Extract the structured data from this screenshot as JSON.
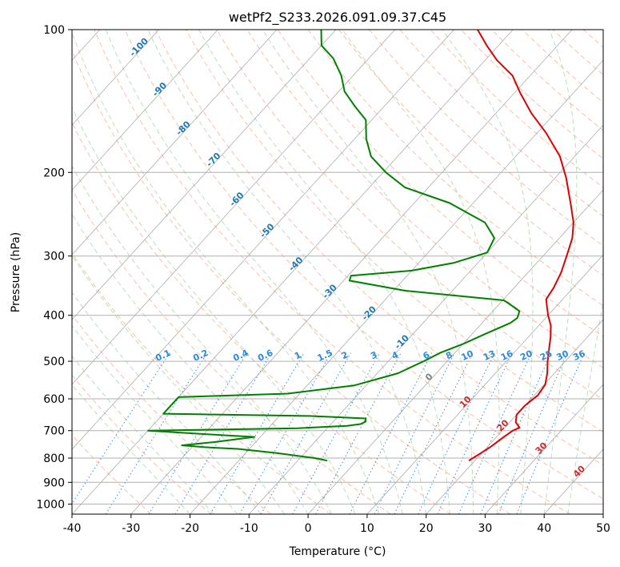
{
  "chart_data": {
    "type": "skew-t",
    "title": "wetPf2_S233.2026.091.09.37.C45",
    "xlabel": "Temperature (°C)",
    "ylabel": "Pressure (hPa)",
    "xlim": [
      -40,
      50
    ],
    "ylim": [
      1050,
      100
    ],
    "y_scale": "log",
    "grid": true,
    "x_ticks": [
      "-40",
      "-30",
      "-20",
      "-10",
      "0",
      "10",
      "20",
      "30",
      "40",
      "50"
    ],
    "y_ticks": [
      "100",
      "200",
      "300",
      "400",
      "500",
      "600",
      "700",
      "800",
      "900",
      "1000"
    ],
    "temperature_profile": {
      "color": "#e00000",
      "points": [
        [
          19,
          810
        ],
        [
          20.5,
          760
        ],
        [
          21.3,
          720
        ],
        [
          21.8,
          700
        ],
        [
          22.5,
          690
        ],
        [
          21,
          672
        ],
        [
          20,
          648
        ],
        [
          20,
          620
        ],
        [
          20.6,
          590
        ],
        [
          20.2,
          560
        ],
        [
          18.8,
          530
        ],
        [
          17,
          500
        ],
        [
          15.3,
          470
        ],
        [
          13.8,
          445
        ],
        [
          12,
          420
        ],
        [
          10,
          400
        ],
        [
          8.6,
          385
        ],
        [
          7.2,
          370
        ],
        [
          6.7,
          350
        ],
        [
          5.6,
          325
        ],
        [
          4,
          300
        ],
        [
          2.2,
          275
        ],
        [
          0,
          255
        ],
        [
          -3.5,
          232
        ],
        [
          -8.2,
          205
        ],
        [
          -12.5,
          185
        ],
        [
          -18.5,
          165
        ],
        [
          -24,
          150
        ],
        [
          -29,
          136
        ],
        [
          -33,
          125
        ],
        [
          -38,
          116
        ],
        [
          -42,
          108
        ],
        [
          -46,
          100
        ]
      ]
    },
    "dewpoint_profile": {
      "color": "#008000",
      "points": [
        [
          -5,
          810
        ],
        [
          -7.5,
          800
        ],
        [
          -15,
          780
        ],
        [
          -22,
          765
        ],
        [
          -27,
          760
        ],
        [
          -32,
          752
        ],
        [
          -27,
          740
        ],
        [
          -21,
          722
        ],
        [
          -30,
          712
        ],
        [
          -40,
          700
        ],
        [
          -15,
          692
        ],
        [
          -7,
          684
        ],
        [
          -5,
          678
        ],
        [
          -4.5,
          670
        ],
        [
          -5,
          660
        ],
        [
          -15,
          652
        ],
        [
          -40,
          645
        ],
        [
          -40,
          595
        ],
        [
          -22,
          585
        ],
        [
          -12,
          562
        ],
        [
          -6.5,
          530
        ],
        [
          -4,
          500
        ],
        [
          -2.5,
          480
        ],
        [
          0,
          460
        ],
        [
          2,
          440
        ],
        [
          4.8,
          415
        ],
        [
          5.2,
          405
        ],
        [
          4.5,
          392
        ],
        [
          2,
          380
        ],
        [
          0.2,
          372
        ],
        [
          -18,
          355
        ],
        [
          -29,
          338
        ],
        [
          -29.5,
          330
        ],
        [
          -20,
          322
        ],
        [
          -14,
          310
        ],
        [
          -10,
          295
        ],
        [
          -11,
          275
        ],
        [
          -15,
          255
        ],
        [
          -24,
          232
        ],
        [
          -34,
          215
        ],
        [
          -39.5,
          200
        ],
        [
          -44.5,
          185
        ],
        [
          -48,
          170
        ],
        [
          -51,
          155
        ],
        [
          -55,
          145
        ],
        [
          -59,
          135
        ],
        [
          -62,
          125
        ],
        [
          -66,
          115
        ],
        [
          -70,
          108
        ],
        [
          -72.5,
          100
        ]
      ]
    },
    "isotherm_labels": [
      "-100",
      "-90",
      "-80",
      "-70",
      "-60",
      "-50",
      "-40",
      "-30",
      "-20",
      "-10",
      "0",
      "10",
      "20",
      "30",
      "40"
    ],
    "mixing_ratio_labels": [
      "0.1",
      "0.2",
      "0.4",
      "0.6",
      "1",
      "1.5",
      "2",
      "3",
      "4",
      "6",
      "8",
      "10",
      "13",
      "16",
      "20",
      "25",
      "30",
      "36"
    ]
  }
}
